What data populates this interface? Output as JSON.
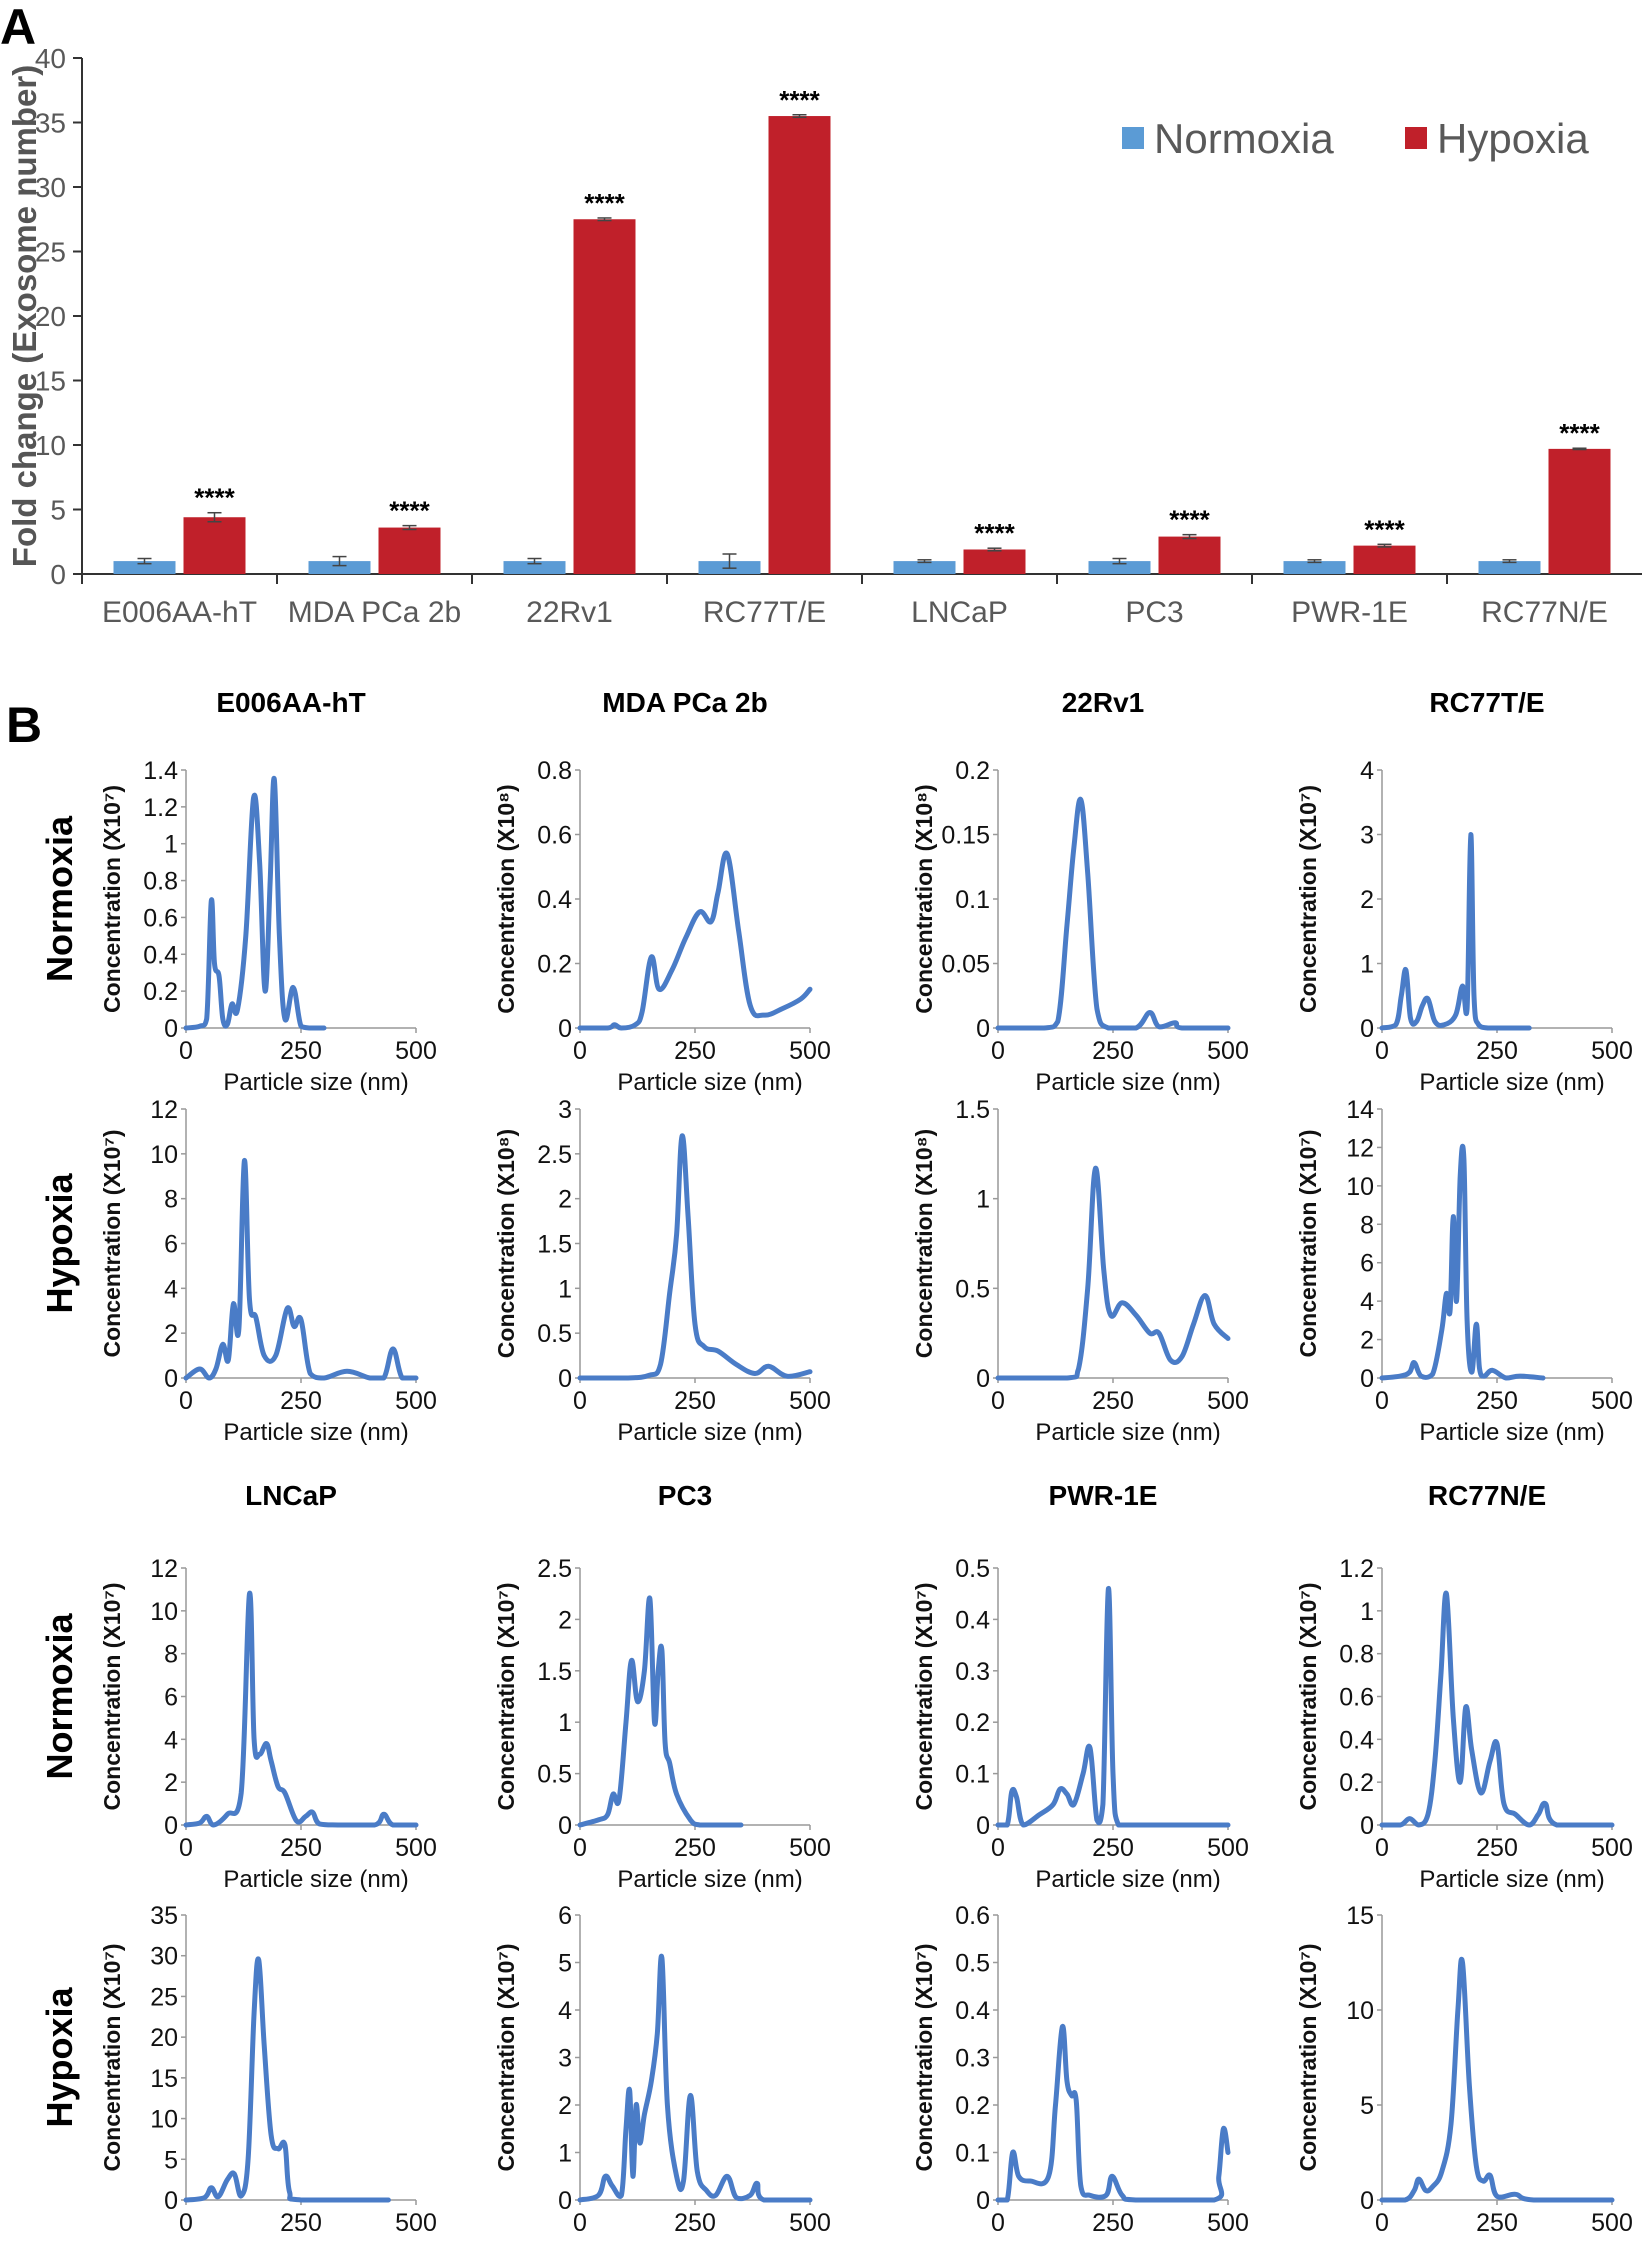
{
  "panel_a_label": "A",
  "panel_b_label": "B",
  "chart_data": [
    {
      "type": "bar",
      "panel": "A",
      "title": "",
      "xlabel": "",
      "ylabel": "Fold change (Exosome number)",
      "ylim": [
        0,
        40
      ],
      "yticks": [
        0,
        5,
        10,
        15,
        20,
        25,
        30,
        35,
        40
      ],
      "categories": [
        "E006AA-hT",
        "MDA PCa 2b",
        "22Rv1",
        "RC77T/E",
        "LNCaP",
        "PC3",
        "PWR-1E",
        "RC77N/E"
      ],
      "series": [
        {
          "name": "Normoxia",
          "color": "#5b9bd5",
          "values": [
            1,
            1,
            1,
            1,
            1,
            1,
            1,
            1
          ],
          "errors": [
            0.2,
            0.35,
            0.2,
            0.55,
            0.1,
            0.2,
            0.1,
            0.1
          ]
        },
        {
          "name": "Hypoxia",
          "color": "#c0202a",
          "values": [
            4.4,
            3.6,
            27.5,
            35.5,
            1.9,
            2.9,
            2.2,
            9.7
          ],
          "errors": [
            0.35,
            0.15,
            0.1,
            0.1,
            0.1,
            0.15,
            0.1,
            0.05
          ]
        }
      ],
      "annotations": [
        "****",
        "****",
        "****",
        "****",
        "****",
        "****",
        "****",
        "****"
      ],
      "legend": "top-right"
    },
    {
      "type": "line",
      "panel": "B",
      "row_labels": [
        "Normoxia",
        "Hypoxia",
        "Normoxia",
        "Hypoxia"
      ],
      "cell_lines": [
        "E006AA-hT",
        "MDA PCa 2b",
        "22Rv1",
        "RC77T/E",
        "LNCaP",
        "PC3",
        "PWR-1E",
        "RC77N/E"
      ],
      "xlabel": "Particle size (nm)",
      "xlim": [
        0,
        500
      ],
      "xticks": [
        0,
        250,
        500
      ],
      "line_color": "#4a7cc7",
      "plots": [
        {
          "cell": "E006AA-hT",
          "condition": "Normoxia",
          "ylabel": "Concentration (X10⁷)",
          "ylim": [
            0,
            1.4
          ],
          "yticks": [
            "0",
            "0.2",
            "0.4",
            "0.6",
            "0.8",
            "1",
            "1.2",
            "1.4"
          ],
          "x": [
            0,
            30,
            45,
            55,
            62,
            72,
            80,
            90,
            100,
            112,
            130,
            147,
            160,
            172,
            183,
            192,
            203,
            215,
            233,
            250,
            270,
            300
          ],
          "y": [
            0,
            0.01,
            0.05,
            0.69,
            0.35,
            0.28,
            0.05,
            0.02,
            0.13,
            0.1,
            0.5,
            1.25,
            0.9,
            0.2,
            0.8,
            1.35,
            0.5,
            0.05,
            0.22,
            0.01,
            0,
            0
          ]
        },
        {
          "cell": "MDA PCa 2b",
          "condition": "Normoxia",
          "ylabel": "Concentration (X10⁸)",
          "ylim": [
            0,
            0.8
          ],
          "yticks": [
            "0",
            "0.2",
            "0.4",
            "0.6",
            "0.8"
          ],
          "x": [
            0,
            60,
            75,
            90,
            120,
            135,
            155,
            172,
            200,
            230,
            260,
            285,
            300,
            320,
            345,
            370,
            400,
            440,
            480,
            500
          ],
          "y": [
            0,
            0,
            0.01,
            0,
            0.01,
            0.05,
            0.22,
            0.12,
            0.18,
            0.28,
            0.36,
            0.33,
            0.42,
            0.54,
            0.3,
            0.07,
            0.04,
            0.06,
            0.09,
            0.12
          ]
        },
        {
          "cell": "22Rv1",
          "condition": "Normoxia",
          "ylabel": "Concentration (X10⁸)",
          "ylim": [
            0,
            0.2
          ],
          "yticks": [
            "0",
            "0.05",
            "0.1",
            "0.15",
            "0.2"
          ],
          "x": [
            0,
            100,
            130,
            150,
            165,
            180,
            195,
            215,
            240,
            300,
            330,
            350,
            385,
            400,
            500
          ],
          "y": [
            0,
            0,
            0.005,
            0.08,
            0.14,
            0.177,
            0.12,
            0.015,
            0,
            0,
            0.012,
            0.001,
            0.004,
            0,
            0
          ]
        },
        {
          "cell": "RC77T/E",
          "condition": "Normoxia",
          "ylabel": "Concentration (X10⁷)",
          "ylim": [
            0,
            4
          ],
          "yticks": [
            "0",
            "1",
            "2",
            "3",
            "4"
          ],
          "x": [
            0,
            30,
            42,
            52,
            62,
            75,
            88,
            100,
            115,
            135,
            160,
            175,
            185,
            193,
            200,
            210,
            230,
            260,
            320
          ],
          "y": [
            0,
            0.05,
            0.5,
            0.9,
            0.15,
            0.1,
            0.35,
            0.45,
            0.1,
            0.05,
            0.2,
            0.65,
            0.3,
            3.0,
            0.5,
            0.05,
            0,
            0,
            0
          ]
        },
        {
          "cell": "E006AA-hT",
          "condition": "Hypoxia",
          "ylabel": "Concentration (X10⁷)",
          "ylim": [
            0,
            12
          ],
          "yticks": [
            "0",
            "2",
            "4",
            "6",
            "8",
            "10",
            "12"
          ],
          "x": [
            0,
            30,
            50,
            65,
            80,
            92,
            103,
            115,
            127,
            138,
            152,
            170,
            195,
            220,
            235,
            250,
            270,
            300,
            350,
            400,
            430,
            450,
            470,
            500
          ],
          "y": [
            0,
            0.4,
            0,
            0.4,
            1.5,
            0.8,
            3.3,
            2.2,
            9.7,
            3.5,
            2.7,
            1.0,
            1.0,
            3.1,
            2.3,
            2.6,
            0.2,
            0,
            0.3,
            0,
            0,
            1.3,
            0,
            0
          ]
        },
        {
          "cell": "MDA PCa 2b",
          "condition": "Hypoxia",
          "ylabel": "Concentration (X10⁸)",
          "ylim": [
            0,
            3
          ],
          "yticks": [
            "0",
            "0.5",
            "1",
            "1.5",
            "2",
            "2.5",
            "3"
          ],
          "x": [
            0,
            100,
            150,
            175,
            195,
            210,
            222,
            235,
            250,
            270,
            300,
            340,
            380,
            410,
            450,
            500
          ],
          "y": [
            0,
            0,
            0.03,
            0.15,
            0.95,
            1.6,
            2.7,
            1.8,
            0.6,
            0.35,
            0.3,
            0.15,
            0.05,
            0.13,
            0.02,
            0.07
          ]
        },
        {
          "cell": "22Rv1",
          "condition": "Hypoxia",
          "ylabel": "Concentration (X10⁸)",
          "ylim": [
            0,
            1.5
          ],
          "yticks": [
            "0",
            "0.5",
            "1",
            "1.5"
          ],
          "x": [
            0,
            150,
            175,
            195,
            212,
            230,
            245,
            270,
            300,
            330,
            350,
            375,
            400,
            425,
            450,
            470,
            500
          ],
          "y": [
            0,
            0,
            0.05,
            0.5,
            1.17,
            0.6,
            0.35,
            0.42,
            0.35,
            0.25,
            0.25,
            0.1,
            0.12,
            0.3,
            0.46,
            0.3,
            0.22
          ]
        },
        {
          "cell": "RC77T/E",
          "condition": "Hypoxia",
          "ylabel": "Concentration (X10⁷)",
          "ylim": [
            0,
            14
          ],
          "yticks": [
            "0",
            "2",
            "4",
            "6",
            "8",
            "10",
            "12",
            "14"
          ],
          "x": [
            0,
            40,
            60,
            70,
            85,
            110,
            130,
            140,
            148,
            155,
            162,
            170,
            178,
            185,
            195,
            205,
            212,
            222,
            240,
            270,
            300,
            350
          ],
          "y": [
            0,
            0.1,
            0.3,
            0.8,
            0.1,
            0.2,
            2.5,
            4.4,
            3.5,
            8.4,
            4.0,
            10.5,
            11.4,
            3.0,
            0.3,
            2.8,
            0.5,
            0.1,
            0.4,
            0,
            0.1,
            0
          ]
        },
        {
          "cell": "LNCaP",
          "condition": "Normoxia",
          "ylabel": "Concentration (X10⁷)",
          "ylim": [
            0,
            12
          ],
          "yticks": [
            "0",
            "2",
            "4",
            "6",
            "8",
            "10",
            "12"
          ],
          "x": [
            0,
            30,
            45,
            60,
            90,
            120,
            138,
            148,
            160,
            175,
            185,
            200,
            215,
            240,
            260,
            275,
            290,
            330,
            410,
            430,
            450,
            500
          ],
          "y": [
            0,
            0.1,
            0.4,
            0,
            0.5,
            1.5,
            10.8,
            4.0,
            3.3,
            3.8,
            3.0,
            1.8,
            1.5,
            0.2,
            0.4,
            0.6,
            0.05,
            0,
            0,
            0.5,
            0,
            0
          ]
        },
        {
          "cell": "PC3",
          "condition": "Normoxia",
          "ylabel": "Concentration (X10⁷)",
          "ylim": [
            0,
            2.5
          ],
          "yticks": [
            "0",
            "0.5",
            "1",
            "1.5",
            "2",
            "2.5"
          ],
          "x": [
            0,
            40,
            60,
            72,
            85,
            100,
            112,
            125,
            140,
            152,
            162,
            170,
            178,
            185,
            195,
            210,
            240,
            260,
            300,
            350
          ],
          "y": [
            0,
            0.05,
            0.1,
            0.3,
            0.25,
            1.0,
            1.6,
            1.2,
            1.5,
            2.2,
            1.0,
            1.5,
            1.7,
            0.8,
            0.6,
            0.3,
            0.05,
            0,
            0,
            0
          ]
        },
        {
          "cell": "PWR-1E",
          "condition": "Normoxia",
          "ylabel": "Concentration (X10⁷)",
          "ylim": [
            0,
            0.5
          ],
          "yticks": [
            "0",
            "0.1",
            "0.2",
            "0.3",
            "0.4",
            "0.5"
          ],
          "x": [
            0,
            20,
            30,
            40,
            55,
            90,
            120,
            135,
            150,
            165,
            185,
            200,
            215,
            228,
            240,
            250,
            262,
            300,
            500
          ],
          "y": [
            0,
            0,
            0.065,
            0.055,
            0,
            0.02,
            0.04,
            0.07,
            0.06,
            0.04,
            0.1,
            0.15,
            0.01,
            0.04,
            0.46,
            0.1,
            0,
            0,
            0
          ]
        },
        {
          "cell": "RC77N/E",
          "condition": "Normoxia",
          "ylabel": "Concentration (X10⁷)",
          "ylim": [
            0,
            1.2
          ],
          "yticks": [
            "0",
            "0.2",
            "0.4",
            "0.6",
            "0.8",
            "1",
            "1.2"
          ],
          "x": [
            0,
            40,
            60,
            80,
            100,
            115,
            128,
            140,
            155,
            170,
            182,
            195,
            215,
            235,
            250,
            265,
            290,
            320,
            340,
            355,
            380,
            500
          ],
          "y": [
            0,
            0,
            0.03,
            0,
            0.05,
            0.3,
            0.7,
            1.08,
            0.5,
            0.2,
            0.55,
            0.35,
            0.15,
            0.3,
            0.38,
            0.1,
            0.05,
            0,
            0.05,
            0.1,
            0,
            0
          ]
        },
        {
          "cell": "LNCaP",
          "condition": "Hypoxia",
          "ylabel": "Concentration (X10⁷)",
          "ylim": [
            0,
            35
          ],
          "yticks": [
            "0",
            "5",
            "10",
            "15",
            "20",
            "25",
            "30",
            "35"
          ],
          "x": [
            0,
            40,
            55,
            70,
            90,
            105,
            120,
            135,
            148,
            158,
            170,
            185,
            200,
            215,
            225,
            250,
            440
          ],
          "y": [
            0,
            0.3,
            1.5,
            0.4,
            2.5,
            3.2,
            0.5,
            5.0,
            23.0,
            29.5,
            19.0,
            8.0,
            6.3,
            6.8,
            1.0,
            0,
            0
          ]
        },
        {
          "cell": "PC3",
          "condition": "Hypoxia",
          "ylabel": "Concentration (X10⁷)",
          "ylim": [
            0,
            6
          ],
          "yticks": [
            "0",
            "1",
            "2",
            "3",
            "4",
            "5",
            "6"
          ],
          "x": [
            0,
            40,
            55,
            70,
            90,
            100,
            108,
            115,
            122,
            130,
            140,
            155,
            168,
            178,
            190,
            210,
            225,
            240,
            255,
            275,
            295,
            320,
            340,
            370,
            385,
            400,
            500
          ],
          "y": [
            0,
            0.1,
            0.5,
            0.3,
            0.1,
            1.5,
            2.3,
            0.5,
            2.0,
            1.2,
            1.8,
            2.5,
            3.5,
            5.1,
            2.0,
            0.5,
            0.4,
            2.2,
            0.6,
            0.2,
            0.1,
            0.5,
            0.05,
            0.1,
            0.35,
            0,
            0
          ]
        },
        {
          "cell": "PWR-1E",
          "condition": "Hypoxia",
          "ylabel": "Concentration (X10⁷)",
          "ylim": [
            0,
            0.6
          ],
          "yticks": [
            "0",
            "0.1",
            "0.2",
            "0.3",
            "0.4",
            "0.5",
            "0.6"
          ],
          "x": [
            0,
            20,
            32,
            45,
            70,
            110,
            125,
            140,
            150,
            160,
            170,
            180,
            200,
            235,
            248,
            270,
            300,
            470,
            480,
            490,
            500
          ],
          "y": [
            0,
            0,
            0.1,
            0.05,
            0.04,
            0.05,
            0.2,
            0.365,
            0.25,
            0.22,
            0.21,
            0.03,
            0.01,
            0.01,
            0.05,
            0.01,
            0,
            0,
            0.05,
            0.15,
            0.1
          ]
        },
        {
          "cell": "RC77N/E",
          "condition": "Hypoxia",
          "ylabel": "Concentration (X10⁷)",
          "ylim": [
            0,
            15
          ],
          "yticks": [
            "0",
            "5",
            "10",
            "15"
          ],
          "x": [
            0,
            50,
            70,
            80,
            95,
            110,
            130,
            150,
            165,
            175,
            190,
            205,
            220,
            235,
            250,
            290,
            330,
            500
          ],
          "y": [
            0,
            0,
            0.5,
            1.1,
            0.5,
            0.7,
            1.5,
            4.0,
            10.0,
            12.5,
            6.0,
            1.8,
            1.0,
            1.3,
            0.2,
            0.3,
            0,
            0
          ]
        }
      ]
    }
  ]
}
